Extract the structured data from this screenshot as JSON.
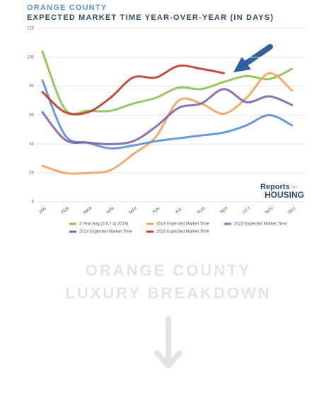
{
  "chart_data": {
    "type": "line",
    "kicker": "ORANGE COUNTY",
    "title": "EXPECTED MARKET TIME YEAR-OVER-YEAR (IN DAYS)",
    "categories": [
      "JAN",
      "FEB",
      "MAR",
      "APR",
      "MAY",
      "JUN",
      "JUL",
      "AUG",
      "SEP",
      "OCT",
      "NOV",
      "DEC"
    ],
    "series": [
      {
        "name": "3 Year Avg (2017 to 2019)",
        "color": "#8cc152",
        "values": [
          104,
          64,
          63,
          63,
          68,
          72,
          79,
          78,
          83,
          87,
          85,
          92
        ]
      },
      {
        "name": "2022 Expected Market Time",
        "color": "#f0a35e",
        "values": [
          25,
          20,
          20,
          22,
          33,
          45,
          70,
          68,
          61,
          72,
          89,
          77
        ]
      },
      {
        "name": "2023 Expected Market Time",
        "color": "#5b8fd6",
        "values": [
          84,
          46,
          41,
          37,
          39,
          42,
          44,
          46,
          48,
          53,
          60,
          53
        ]
      },
      {
        "name": "2024 Expected Market Time",
        "color": "#8063a9",
        "values": [
          62,
          43,
          41,
          40,
          42,
          52,
          65,
          68,
          78,
          69,
          73,
          67
        ]
      },
      {
        "name": "2025 Expected Market Time",
        "color": "#c0392b",
        "values": [
          76,
          62,
          62,
          72,
          86,
          86,
          94,
          92,
          89,
          null,
          null,
          null
        ]
      }
    ],
    "ylim": [
      0,
      120
    ],
    "yticks": [
      0,
      20,
      40,
      60,
      80,
      100,
      120
    ],
    "grid": true
  },
  "logo": {
    "main": "Reports",
    "small": "on",
    "sub": "HOUSING"
  },
  "footer": {
    "line1": "ORANGE COUNTY",
    "line2": "LUXURY BREAKDOWN"
  }
}
